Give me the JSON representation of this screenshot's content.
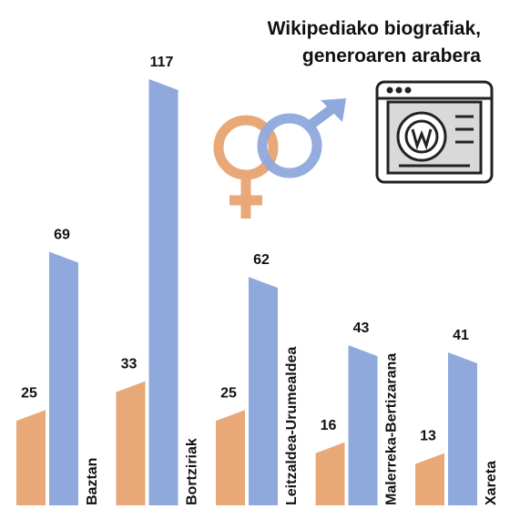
{
  "chart_data": {
    "type": "bar",
    "title": [
      "Wikipediako biografiak,",
      "generoaren arabera"
    ],
    "categories": [
      "Baztan",
      "Bortziriak",
      "Leitzaldea-Urumealdea",
      "Malerreka-Bertizarana",
      "Xareta"
    ],
    "series": [
      {
        "color": "#e9a877",
        "values": [
          25,
          33,
          25,
          16,
          13
        ]
      },
      {
        "color": "#8fa9dc",
        "values": [
          69,
          117,
          62,
          43,
          41
        ]
      }
    ]
  }
}
